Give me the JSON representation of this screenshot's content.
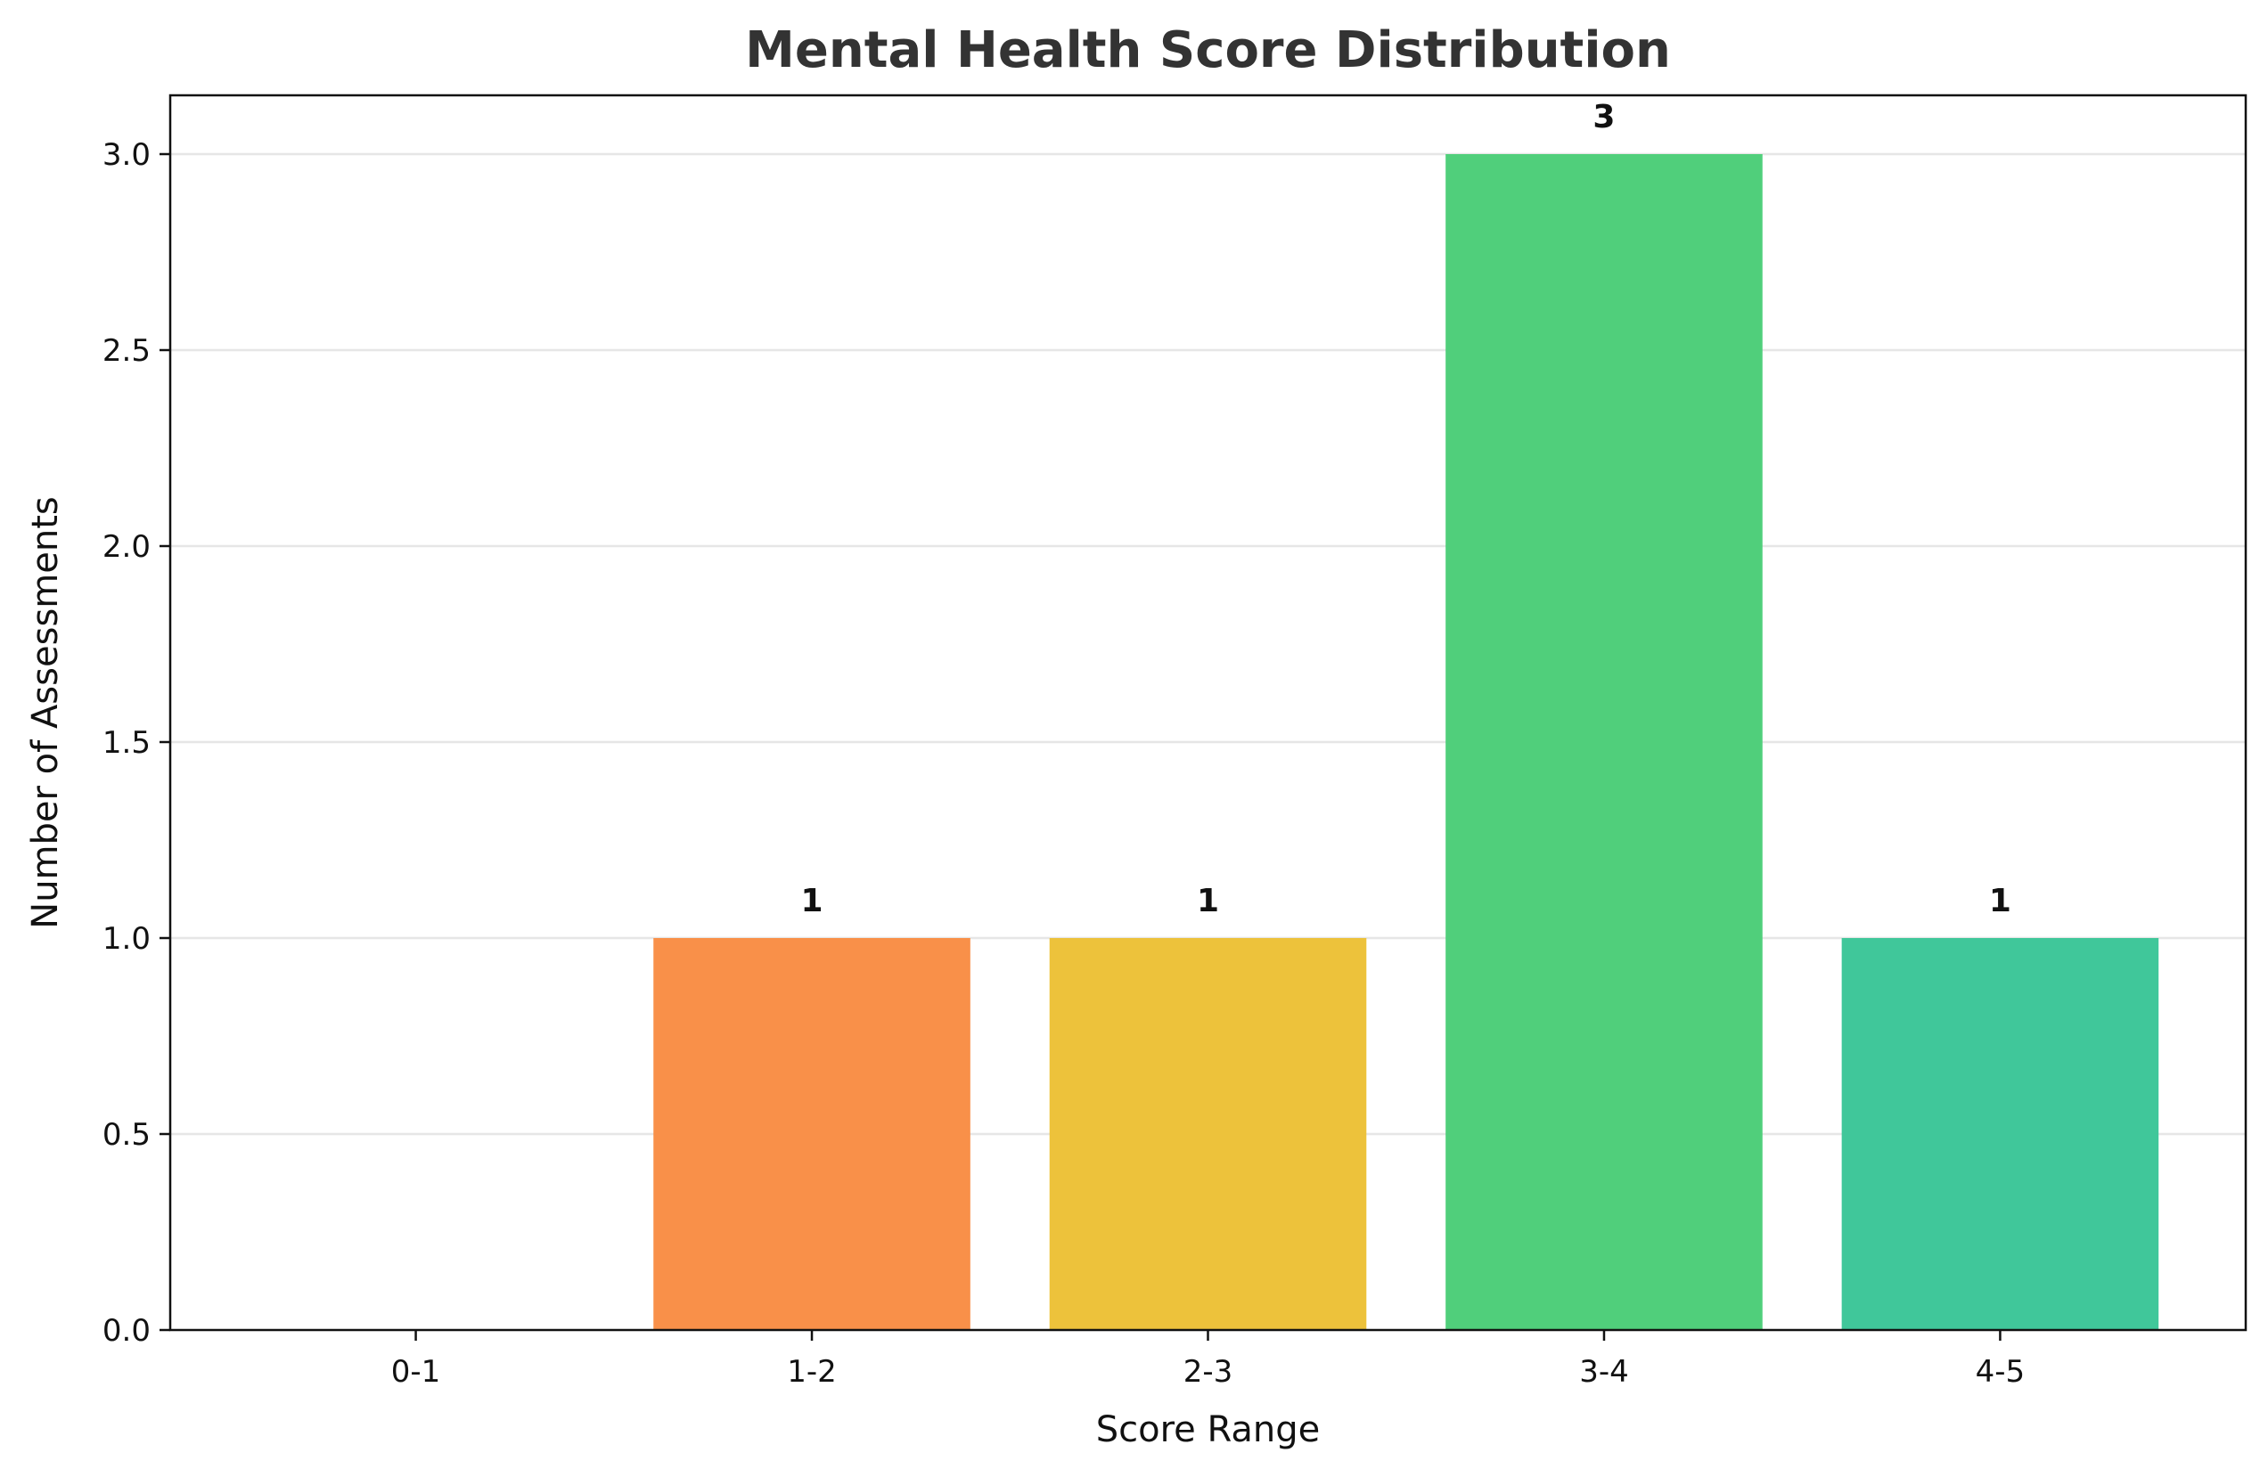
{
  "chart_data": {
    "type": "bar",
    "title": "Mental Health Score Distribution",
    "xlabel": "Score Range",
    "ylabel": "Number of Assessments",
    "categories": [
      "0-1",
      "1-2",
      "2-3",
      "3-4",
      "4-5"
    ],
    "values": [
      0,
      1,
      1,
      3,
      1
    ],
    "data_labels": [
      "",
      "1",
      "1",
      "3",
      "1"
    ],
    "colors": [
      "#e74c3c",
      "#f99049",
      "#edc23b",
      "#50cf7b",
      "#40c79a"
    ],
    "ylim": [
      0,
      3.15
    ],
    "yticks": [
      0.0,
      0.5,
      1.0,
      1.5,
      2.0,
      2.5,
      3.0
    ],
    "ytick_labels": [
      "0.0",
      "0.5",
      "1.0",
      "1.5",
      "2.0",
      "2.5",
      "3.0"
    ],
    "grid": "y-axis",
    "legend": "none"
  }
}
